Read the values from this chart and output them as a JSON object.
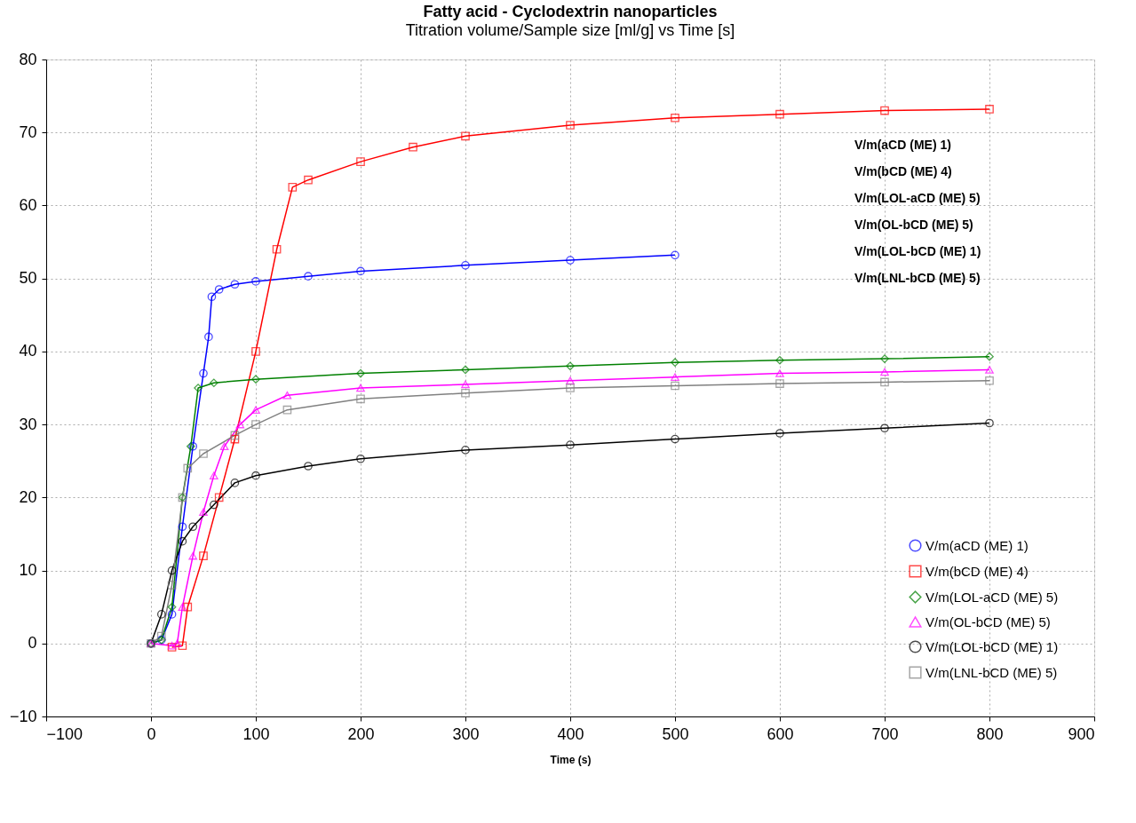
{
  "chart_data": {
    "type": "line",
    "title": "Fatty acid - Cyclodextrin nanoparticles",
    "subtitle": "Titration volume/Sample size [ml/g] vs Time [s]",
    "xlabel": "Time (s)",
    "xlim": [
      -100,
      900
    ],
    "xticks": [
      -100,
      0,
      100,
      200,
      300,
      400,
      500,
      600,
      700,
      800,
      900
    ],
    "ylim": [
      -10,
      80
    ],
    "yticks": [
      -10,
      0,
      10,
      20,
      30,
      40,
      50,
      60,
      70,
      80
    ],
    "grid": true,
    "legend": "bottom right",
    "line_style": "solid",
    "annotations": [
      "V/m(aCD (ME) 1)",
      "V/m(bCD (ME) 4)",
      "V/m(LOL-aCD (ME) 5)",
      "V/m(OL-bCD (ME) 5)",
      "V/m(LOL-bCD (ME) 1)",
      "V/m(LNL-bCD (ME) 5)"
    ],
    "series": [
      {
        "name": "V/m(aCD (ME) 1)",
        "color": "#0000ff",
        "marker": "circle",
        "x": [
          0,
          10,
          20,
          30,
          40,
          50,
          55,
          58,
          65,
          80,
          100,
          150,
          200,
          300,
          400,
          500
        ],
        "values": [
          0,
          0.5,
          4,
          16,
          27,
          37,
          42,
          47.5,
          48.5,
          49.2,
          49.6,
          50.3,
          51,
          51.8,
          52.5,
          53.2
        ]
      },
      {
        "name": "V/m(bCD (ME) 4)",
        "color": "#ff0000",
        "marker": "square",
        "x": [
          20,
          30,
          35,
          50,
          65,
          80,
          100,
          120,
          135,
          150,
          200,
          250,
          300,
          400,
          500,
          600,
          700,
          800
        ],
        "values": [
          -0.5,
          -0.3,
          5,
          12,
          20,
          28,
          40,
          54,
          62.5,
          63.5,
          66,
          68,
          69.5,
          71,
          72,
          72.5,
          73,
          73.2
        ]
      },
      {
        "name": "V/m(LOL-aCD (ME) 5)",
        "color": "#008000",
        "marker": "diamond",
        "x": [
          0,
          10,
          20,
          30,
          38,
          45,
          60,
          100,
          200,
          300,
          400,
          500,
          600,
          700,
          800
        ],
        "values": [
          0,
          0.5,
          5,
          20,
          27,
          35,
          35.7,
          36.2,
          37,
          37.5,
          38,
          38.5,
          38.8,
          39,
          39.3
        ]
      },
      {
        "name": "V/m(OL-bCD (ME) 5)",
        "color": "#ff00ff",
        "marker": "triangle",
        "x": [
          0,
          20,
          25,
          30,
          40,
          50,
          60,
          70,
          85,
          100,
          130,
          200,
          300,
          400,
          500,
          600,
          700,
          800
        ],
        "values": [
          0,
          -0.3,
          0,
          5,
          12,
          18,
          23,
          27,
          30,
          32,
          34,
          35,
          35.5,
          36,
          36.5,
          37,
          37.2,
          37.5
        ]
      },
      {
        "name": "V/m(LOL-bCD (ME) 1)",
        "color": "#000000",
        "marker": "circle",
        "x": [
          0,
          10,
          20,
          30,
          40,
          60,
          80,
          100,
          150,
          200,
          300,
          400,
          500,
          600,
          700,
          800
        ],
        "values": [
          0,
          4,
          10,
          14,
          16,
          19,
          22,
          23,
          24.3,
          25.3,
          26.5,
          27.2,
          28,
          28.8,
          29.5,
          30.2
        ]
      },
      {
        "name": "V/m(LNL-bCD (ME) 5)",
        "color": "#808080",
        "marker": "square",
        "x": [
          0,
          10,
          20,
          30,
          35,
          50,
          80,
          100,
          130,
          200,
          300,
          400,
          500,
          600,
          700,
          800
        ],
        "values": [
          0,
          1,
          8,
          20,
          24,
          26,
          28.5,
          30,
          32,
          33.5,
          34.3,
          35,
          35.3,
          35.6,
          35.8,
          36
        ]
      }
    ]
  }
}
